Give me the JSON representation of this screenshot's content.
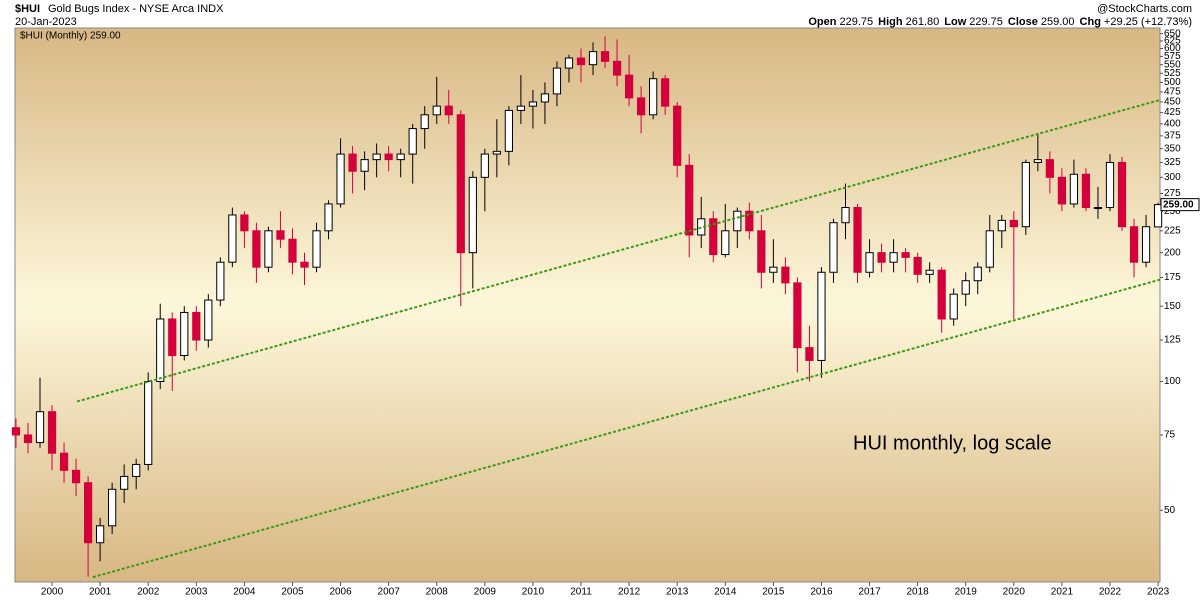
{
  "chart_data": {
    "type": "candlestick",
    "symbol": "$HUI",
    "name": "Gold Bugs Index - NYSE Arca INDX",
    "date": "20-Jan-2023",
    "quote": [
      {
        "label": "Open",
        "value": "229.75"
      },
      {
        "label": "High",
        "value": "261.80"
      },
      {
        "label": "Low",
        "value": "229.75"
      },
      {
        "label": "Close",
        "value": "259.00"
      },
      {
        "label": "Chg",
        "value": "+29.25 (+12.73%)"
      }
    ],
    "watermark": "@StockCharts.com",
    "legend": "$HUI (Monthly) 259.00",
    "annotation": "HUI monthly, log scale",
    "log_scale": true,
    "up_color": "#000000",
    "down_color": "#d4003c",
    "x": [
      1999.25,
      1999.5,
      1999.75,
      2000,
      2000.25,
      2000.5,
      2000.75,
      2001,
      2001.25,
      2001.5,
      2001.75,
      2002,
      2002.25,
      2002.5,
      2002.75,
      2003,
      2003.25,
      2003.5,
      2003.75,
      2004,
      2004.25,
      2004.5,
      2004.75,
      2005,
      2005.25,
      2005.5,
      2005.75,
      2006,
      2006.25,
      2006.5,
      2006.75,
      2007,
      2007.25,
      2007.5,
      2007.75,
      2008,
      2008.25,
      2008.5,
      2008.75,
      2009,
      2009.25,
      2009.5,
      2009.75,
      2010,
      2010.25,
      2010.5,
      2010.75,
      2011,
      2011.25,
      2011.5,
      2011.75,
      2012,
      2012.25,
      2012.5,
      2012.75,
      2013,
      2013.25,
      2013.5,
      2013.75,
      2014,
      2014.25,
      2014.5,
      2014.75,
      2015,
      2015.25,
      2015.5,
      2015.75,
      2016,
      2016.25,
      2016.5,
      2016.75,
      2017,
      2017.25,
      2017.5,
      2017.75,
      2018,
      2018.25,
      2018.5,
      2018.75,
      2019,
      2019.25,
      2019.5,
      2019.75,
      2020,
      2020.25,
      2020.5,
      2020.75,
      2021,
      2021.25,
      2021.5,
      2021.75,
      2022,
      2022.25,
      2022.5,
      2022.75,
      2023
    ],
    "open": [
      78,
      75,
      72,
      85,
      68,
      62,
      58,
      42,
      46,
      56,
      60,
      64,
      100,
      140,
      115,
      145,
      125,
      155,
      190,
      245,
      225,
      185,
      225,
      215,
      190,
      185,
      225,
      260,
      340,
      310,
      330,
      340,
      330,
      340,
      390,
      420,
      440,
      420,
      200,
      300,
      340,
      345,
      430,
      440,
      450,
      470,
      540,
      570,
      550,
      590,
      560,
      520,
      460,
      420,
      510,
      440,
      320,
      220,
      240,
      198,
      225,
      250,
      225,
      180,
      185,
      170,
      120,
      112,
      180,
      235,
      255,
      180,
      200,
      190,
      200,
      195,
      178,
      182,
      140,
      160,
      172,
      185,
      225,
      238,
      230,
      325,
      330,
      300,
      260,
      305,
      255,
      255,
      325,
      230,
      190,
      229.75
    ],
    "high": [
      82,
      80,
      102,
      88,
      72,
      66,
      60,
      48,
      58,
      64,
      66,
      105,
      152,
      145,
      150,
      150,
      160,
      195,
      255,
      250,
      235,
      230,
      250,
      228,
      200,
      235,
      265,
      370,
      355,
      345,
      360,
      355,
      350,
      400,
      440,
      515,
      480,
      430,
      310,
      350,
      410,
      440,
      520,
      480,
      500,
      560,
      580,
      600,
      620,
      640,
      630,
      580,
      490,
      530,
      520,
      450,
      340,
      270,
      250,
      260,
      255,
      262,
      245,
      215,
      195,
      175,
      135,
      185,
      240,
      290,
      260,
      215,
      210,
      215,
      205,
      200,
      190,
      185,
      165,
      180,
      190,
      245,
      245,
      250,
      330,
      380,
      345,
      315,
      330,
      315,
      285,
      340,
      335,
      240,
      245,
      261.8
    ],
    "low": [
      70,
      68,
      70,
      62,
      58,
      54,
      35,
      38,
      44,
      52,
      56,
      62,
      96,
      95,
      112,
      118,
      120,
      150,
      185,
      205,
      170,
      180,
      205,
      178,
      168,
      180,
      215,
      255,
      275,
      280,
      300,
      310,
      300,
      290,
      350,
      400,
      400,
      150,
      165,
      250,
      300,
      320,
      400,
      390,
      400,
      440,
      500,
      500,
      520,
      540,
      490,
      440,
      380,
      410,
      420,
      300,
      195,
      205,
      190,
      195,
      205,
      215,
      165,
      170,
      160,
      105,
      100,
      102,
      170,
      215,
      170,
      175,
      180,
      180,
      180,
      170,
      170,
      130,
      135,
      150,
      160,
      180,
      205,
      140,
      220,
      310,
      275,
      250,
      255,
      250,
      240,
      250,
      225,
      175,
      185,
      229.75
    ],
    "close": [
      75,
      72,
      85,
      68,
      62,
      58,
      42,
      46,
      56,
      60,
      64,
      100,
      140,
      115,
      145,
      125,
      155,
      190,
      245,
      225,
      185,
      225,
      215,
      190,
      185,
      225,
      260,
      340,
      310,
      330,
      340,
      330,
      340,
      390,
      420,
      440,
      420,
      200,
      300,
      340,
      345,
      430,
      440,
      450,
      470,
      540,
      570,
      550,
      590,
      560,
      520,
      460,
      420,
      510,
      440,
      320,
      220,
      240,
      198,
      225,
      250,
      225,
      180,
      185,
      170,
      120,
      112,
      180,
      235,
      255,
      180,
      200,
      190,
      200,
      195,
      178,
      182,
      140,
      160,
      172,
      185,
      225,
      238,
      230,
      325,
      330,
      300,
      260,
      305,
      255,
      255,
      325,
      230,
      190,
      230,
      259
    ],
    "last_label": {
      "value": 259,
      "label": "259.00"
    },
    "trendlines": [
      {
        "color": "#3c9a18",
        "x": [
          2000.52,
          2023.04
        ],
        "y": [
          89.8,
          455
        ]
      },
      {
        "color": "#3c9a18",
        "x": [
          2000.85,
          2023.04
        ],
        "y": [
          34.9,
          173
        ]
      }
    ],
    "xlim": [
      1999.23,
      2023.04
    ],
    "xticks": [
      2000,
      2001,
      2002,
      2003,
      2004,
      2005,
      2006,
      2007,
      2008,
      2009,
      2010,
      2011,
      2012,
      2013,
      2014,
      2015,
      2016,
      2017,
      2018,
      2019,
      2020,
      2021,
      2022,
      2023
    ],
    "ylim": [
      34,
      670
    ],
    "yticks": [
      50,
      75,
      100,
      125,
      150,
      175,
      200,
      225,
      250,
      275,
      300,
      325,
      350,
      375,
      400,
      425,
      450,
      475,
      500,
      525,
      550,
      575,
      600,
      625,
      650
    ]
  }
}
